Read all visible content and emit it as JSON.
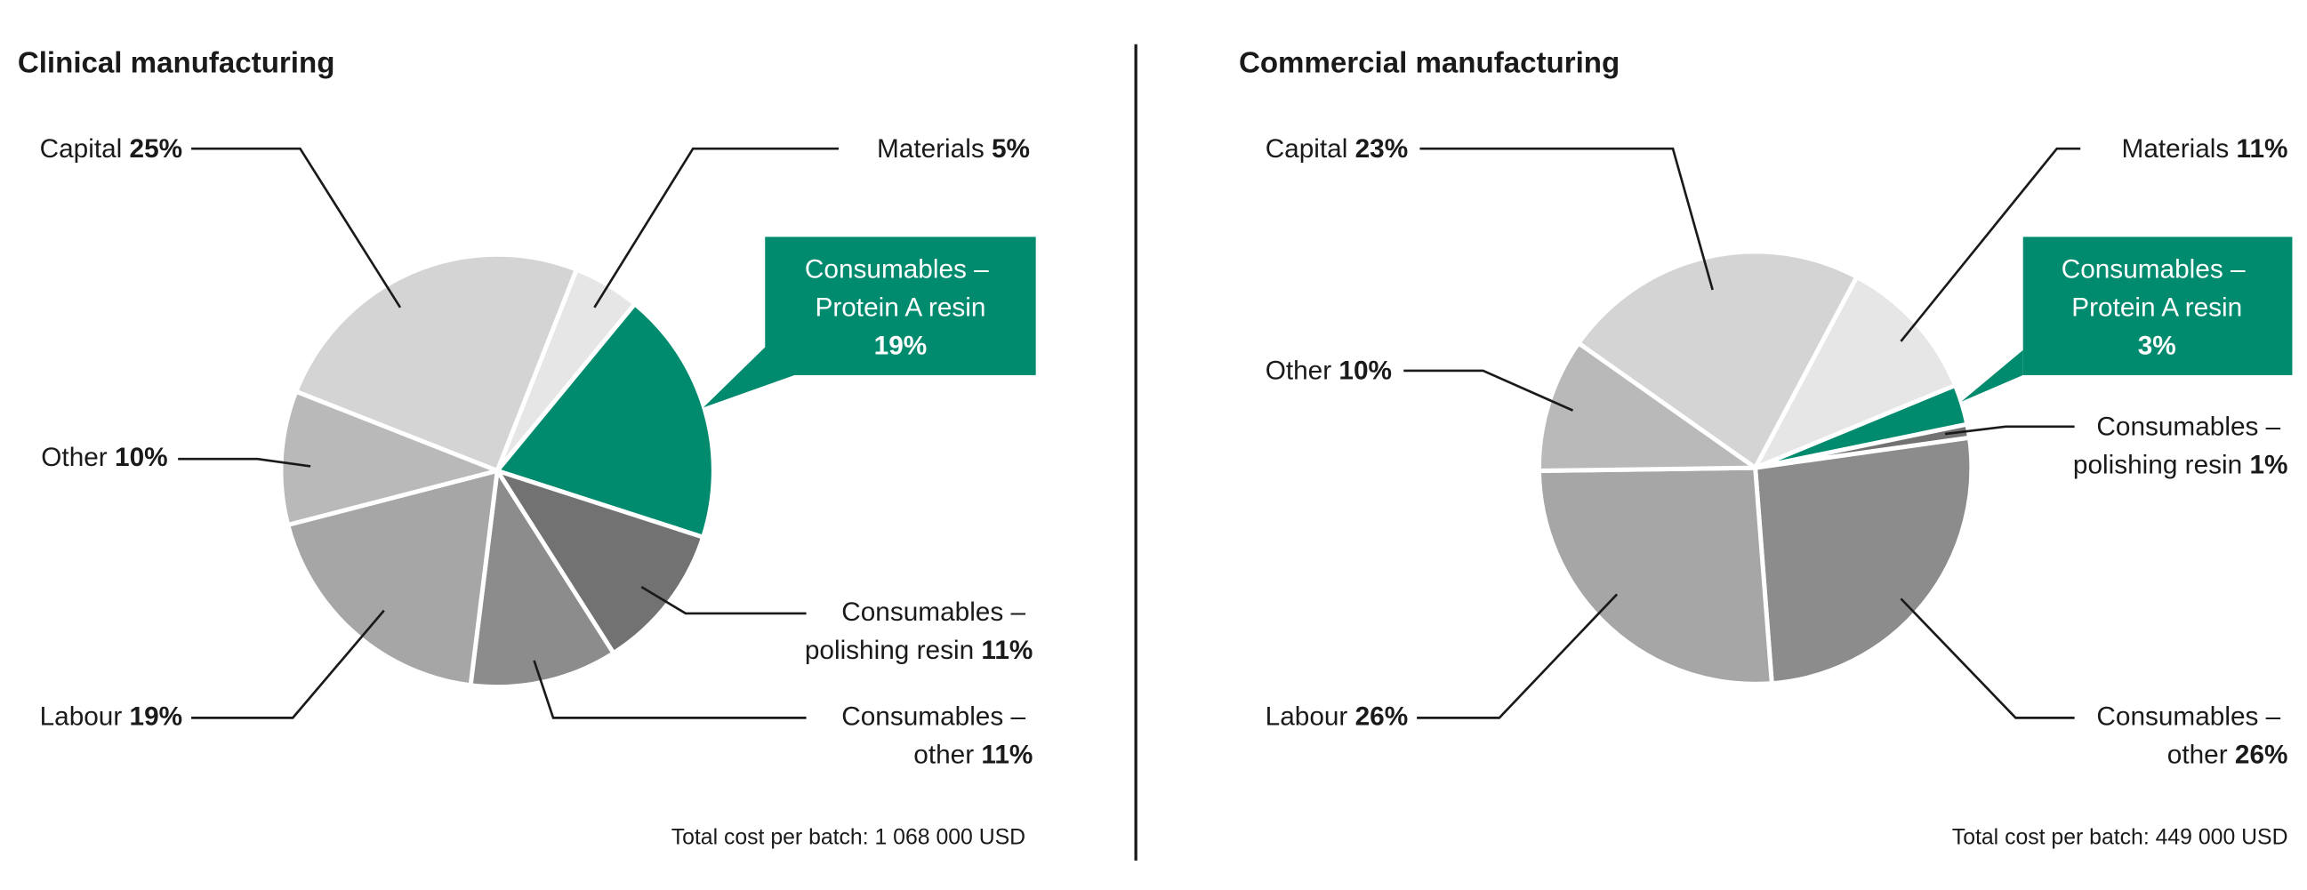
{
  "chart_data": [
    {
      "type": "pie",
      "title": "Clinical manufacturing",
      "categories": [
        "Capital",
        "Materials",
        "Consumables – Protein A resin",
        "Consumables – polishing resin",
        "Consumables – other",
        "Labour",
        "Other"
      ],
      "values": [
        25,
        5,
        19,
        11,
        11,
        19,
        10
      ],
      "value_labels": [
        "25%",
        "5%",
        "19%",
        "11%",
        "11%",
        "19%",
        "10%"
      ],
      "colors": [
        "#d4d4d4",
        "#e6e6e6",
        "#008a6e",
        "#727272",
        "#8c8c8c",
        "#a6a6a6",
        "#b9b9b9"
      ],
      "note": "Total cost per batch: 1 068 000 USD"
    },
    {
      "type": "pie",
      "title": "Commercial manufacturing",
      "categories": [
        "Capital",
        "Materials",
        "Consumables – Protein A resin",
        "Consumables – polishing resin",
        "Consumables – other",
        "Labour",
        "Other"
      ],
      "values": [
        23,
        11,
        3,
        1,
        26,
        26,
        10
      ],
      "value_labels": [
        "23%",
        "11%",
        "3%",
        "1%",
        "26%",
        "26%",
        "10%"
      ],
      "colors": [
        "#d4d4d4",
        "#e6e6e6",
        "#008a6e",
        "#727272",
        "#8c8c8c",
        "#a6a6a6",
        "#b9b9b9"
      ],
      "note": "Total cost per batch: 449 000 USD"
    }
  ]
}
